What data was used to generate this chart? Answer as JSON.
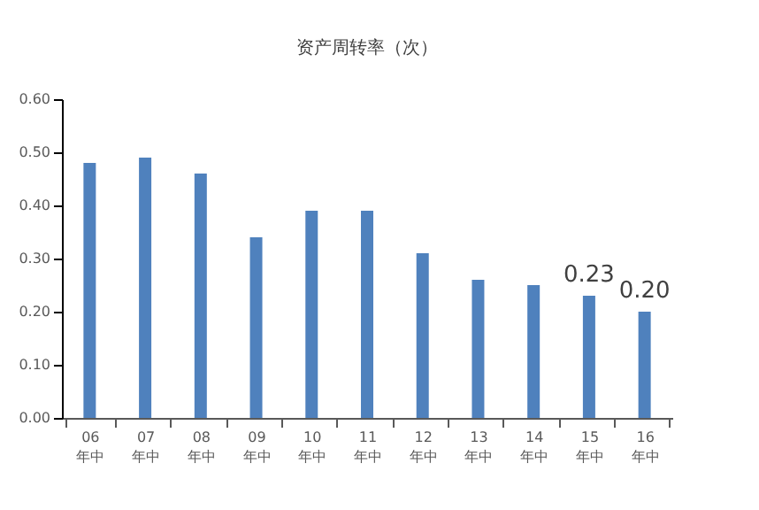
{
  "chart_data": {
    "type": "bar",
    "title": "资产周转率（次）",
    "categories": [
      "06\n年中",
      "07\n年中",
      "08\n年中",
      "09\n年中",
      "10\n年中",
      "11\n年中",
      "12\n年中",
      "13\n年中",
      "14\n年中",
      "15\n年中",
      "16\n年中"
    ],
    "values": [
      0.48,
      0.49,
      0.46,
      0.34,
      0.39,
      0.39,
      0.31,
      0.26,
      0.25,
      0.23,
      0.2
    ],
    "value_labels": [
      null,
      null,
      null,
      null,
      null,
      null,
      null,
      null,
      null,
      "0.23",
      "0.20"
    ],
    "color": "#4f81bd",
    "ylim": [
      0,
      0.6
    ],
    "yticks": [
      {
        "value": 0,
        "label": "0.00"
      },
      {
        "value": 0.1,
        "label": "0.10"
      },
      {
        "value": 0.2,
        "label": "0.20"
      },
      {
        "value": 0.3,
        "label": "0.30"
      },
      {
        "value": 0.4,
        "label": "0.40"
      },
      {
        "value": 0.5,
        "label": "0.50"
      },
      {
        "value": 0.6,
        "label": "0.60"
      }
    ],
    "grid": false
  }
}
